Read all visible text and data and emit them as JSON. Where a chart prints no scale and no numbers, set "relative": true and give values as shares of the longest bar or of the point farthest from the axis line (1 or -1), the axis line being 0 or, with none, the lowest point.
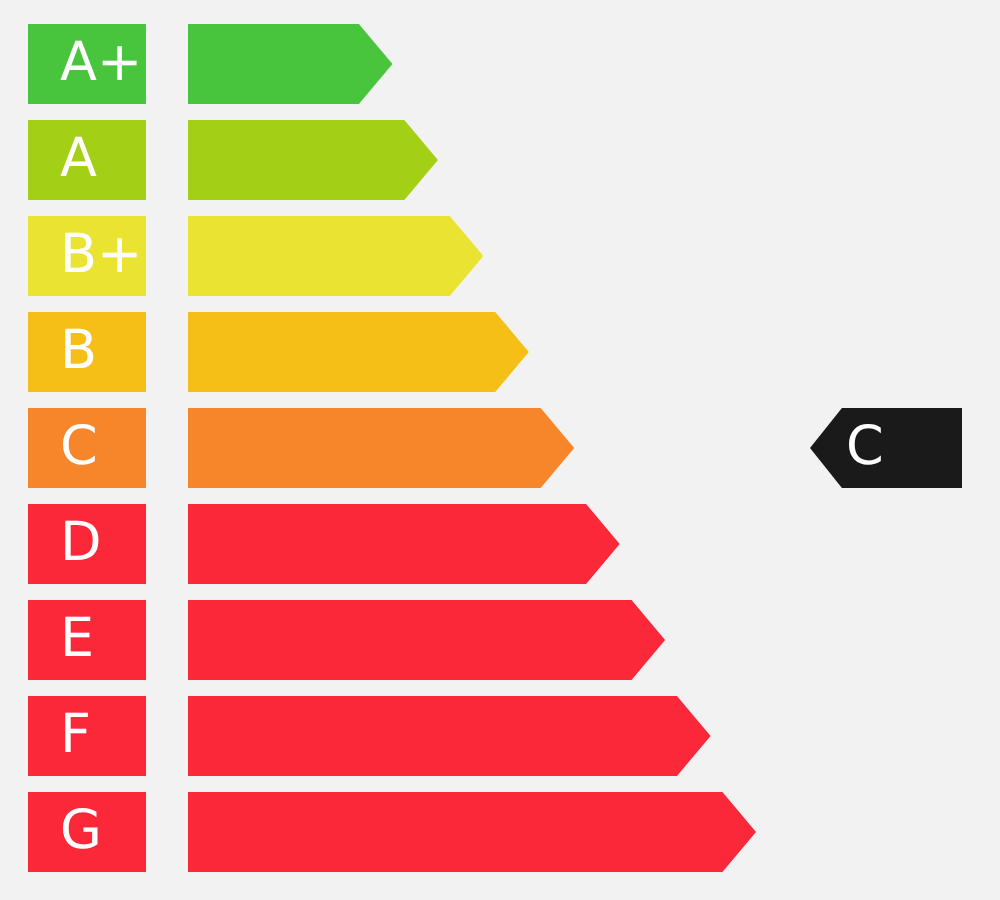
{
  "chart_data": {
    "type": "bar",
    "orientation": "horizontal",
    "relative": true,
    "categories": [
      "A+",
      "A",
      "B+",
      "B",
      "C",
      "D",
      "E",
      "F",
      "G"
    ],
    "values": [
      0.36,
      0.44,
      0.52,
      0.6,
      0.68,
      0.76,
      0.84,
      0.92,
      1
    ],
    "colors": [
      "#48c53c",
      "#a3cf14",
      "#ebe332",
      "#f5bf18",
      "#f7862a",
      "#fb283a",
      "#fb283a",
      "#fb283a",
      "#fb283a"
    ],
    "annotations": [
      "C"
    ]
  }
}
